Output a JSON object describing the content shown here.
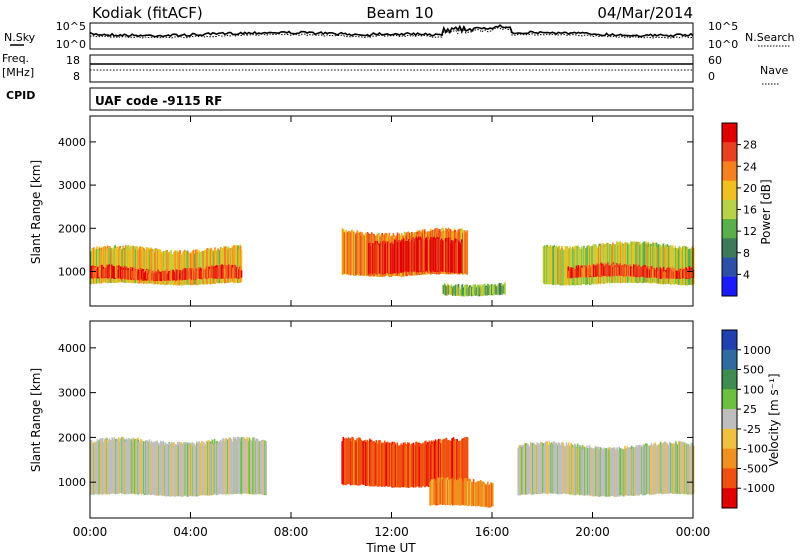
{
  "header": {
    "station": "Kodiak (fitACF)",
    "beam": "Beam 10",
    "date": "04/Mar/2014"
  },
  "noise_panel": {
    "left_label": "N.Sky",
    "right_label": "N.Search",
    "left_ticks": [
      "10^5",
      "10^0"
    ],
    "right_ticks": [
      "10^5",
      "10^0"
    ]
  },
  "freq_panel": {
    "left_label_line1": "Freq.",
    "left_label_line2": "[MHz]",
    "left_ticks": [
      "18",
      "8"
    ],
    "right_label": "Nave",
    "right_ticks": [
      "60",
      "0"
    ]
  },
  "cpid_panel": {
    "label": "CPID",
    "text": "UAF code -9115 RF"
  },
  "x_axis": {
    "label": "Time UT",
    "ticks": [
      "00:00",
      "04:00",
      "08:00",
      "12:00",
      "16:00",
      "20:00",
      "00:00"
    ]
  },
  "colors": {
    "power": [
      "#1a1aff",
      "#2c4fa8",
      "#3c7a5a",
      "#59b04a",
      "#b8d24a",
      "#f0c020",
      "#f58020",
      "#e84020",
      "#e00000"
    ],
    "velocity": [
      "#2040b0",
      "#2f6aa0",
      "#3f8c50",
      "#6cc040",
      "#bebebe",
      "#f0c040",
      "#f09020",
      "#f05010",
      "#e00000"
    ]
  },
  "chart_data": [
    {
      "type": "heatmap",
      "title": "Power",
      "ylabel": "Slant Range [km]",
      "xlabel": "Time UT",
      "x_range_hours": [
        0,
        24
      ],
      "ylim": [
        200,
        4600
      ],
      "y_ticks": [
        "1000",
        "2000",
        "3000",
        "4000"
      ],
      "colorbar": {
        "label": "Power [dB]",
        "ticks": [
          "28",
          "24",
          "20",
          "16",
          "12",
          "8",
          "4"
        ],
        "range": [
          0,
          30
        ]
      },
      "regions": [
        {
          "t0": 0,
          "t1": 6.0,
          "r0": 700,
          "r1": 1500,
          "value": 18
        },
        {
          "t0": 0,
          "t1": 6.0,
          "r0": 800,
          "r1": 1050,
          "value": 26
        },
        {
          "t0": 10.0,
          "t1": 15.0,
          "r0": 900,
          "r1": 1900,
          "value": 22
        },
        {
          "t0": 11.0,
          "t1": 14.8,
          "r0": 950,
          "r1": 1700,
          "value": 28
        },
        {
          "t0": 14.0,
          "t1": 16.5,
          "r0": 450,
          "r1": 700,
          "value": 12
        },
        {
          "t0": 18.0,
          "t1": 24.0,
          "r0": 700,
          "r1": 1600,
          "value": 16
        },
        {
          "t0": 19.0,
          "t1": 24.0,
          "r0": 850,
          "r1": 1100,
          "value": 26
        }
      ]
    },
    {
      "type": "heatmap",
      "title": "Velocity",
      "ylabel": "Slant Range [km]",
      "xlabel": "Time UT",
      "x_range_hours": [
        0,
        24
      ],
      "ylim": [
        200,
        4600
      ],
      "y_ticks": [
        "1000",
        "2000",
        "3000",
        "4000"
      ],
      "colorbar": {
        "label": "Velocity [m s⁻¹]",
        "ticks": [
          "1000",
          "500",
          "100",
          "25",
          "-25",
          "-100",
          "-500",
          "-1000"
        ]
      },
      "regions": [
        {
          "t0": 0,
          "t1": 7.0,
          "r0": 700,
          "r1": 1900,
          "value": 0
        },
        {
          "t0": 10.0,
          "t1": 15.0,
          "r0": 900,
          "r1": 1900,
          "value": -500
        },
        {
          "t0": 13.5,
          "t1": 16.0,
          "r0": 450,
          "r1": 1000,
          "value": -100
        },
        {
          "t0": 17.0,
          "t1": 24.0,
          "r0": 700,
          "r1": 1800,
          "value": 0
        }
      ]
    }
  ]
}
